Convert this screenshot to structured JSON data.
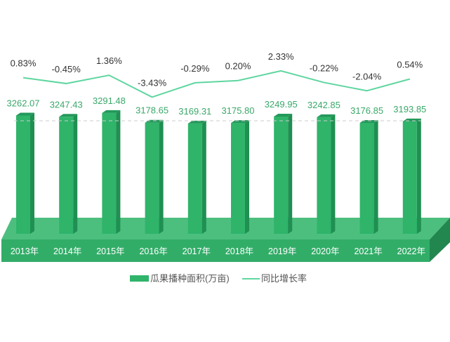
{
  "chart_data": {
    "type": "bar",
    "title": "",
    "xlabel": "",
    "ylabel": "",
    "categories": [
      "2013年",
      "2014年",
      "2015年",
      "2016年",
      "2017年",
      "2018年",
      "2019年",
      "2020年",
      "2021年",
      "2022年"
    ],
    "series": [
      {
        "name": "瓜果播种面积(万亩)",
        "type": "bar",
        "values": [
          3262.07,
          3247.43,
          3291.48,
          3178.65,
          3169.31,
          3175.8,
          3249.95,
          3242.85,
          3176.85,
          3193.85
        ],
        "labels": [
          "3262.07",
          "3247.43",
          "3291.48",
          "3178.65",
          "3169.31",
          "3175.80",
          "3249.95",
          "3242.85",
          "3176.85",
          "3193.85"
        ]
      },
      {
        "name": "同比增长率",
        "type": "line",
        "unit": "%",
        "values": [
          0.83,
          -0.45,
          1.36,
          -3.43,
          -0.29,
          0.2,
          2.33,
          -0.22,
          -2.04,
          0.54
        ],
        "labels": [
          "0.83%",
          "-0.45%",
          "1.36%",
          "-3.43%",
          "-0.29%",
          "0.20%",
          "2.33%",
          "-0.22%",
          "-2.04%",
          "0.54%"
        ]
      }
    ],
    "legend": "bottom-center",
    "grid": false,
    "colors": {
      "bar": "#2fb46a",
      "bar_side": "#1f8f52",
      "bar_top": "#23995a",
      "line": "#5fd6a0",
      "value_label": "#3aa86a",
      "pct_label": "#333333",
      "platform_top": "#4cbf7e",
      "platform_front": "#32ad68",
      "platform_side": "#22874f"
    }
  }
}
